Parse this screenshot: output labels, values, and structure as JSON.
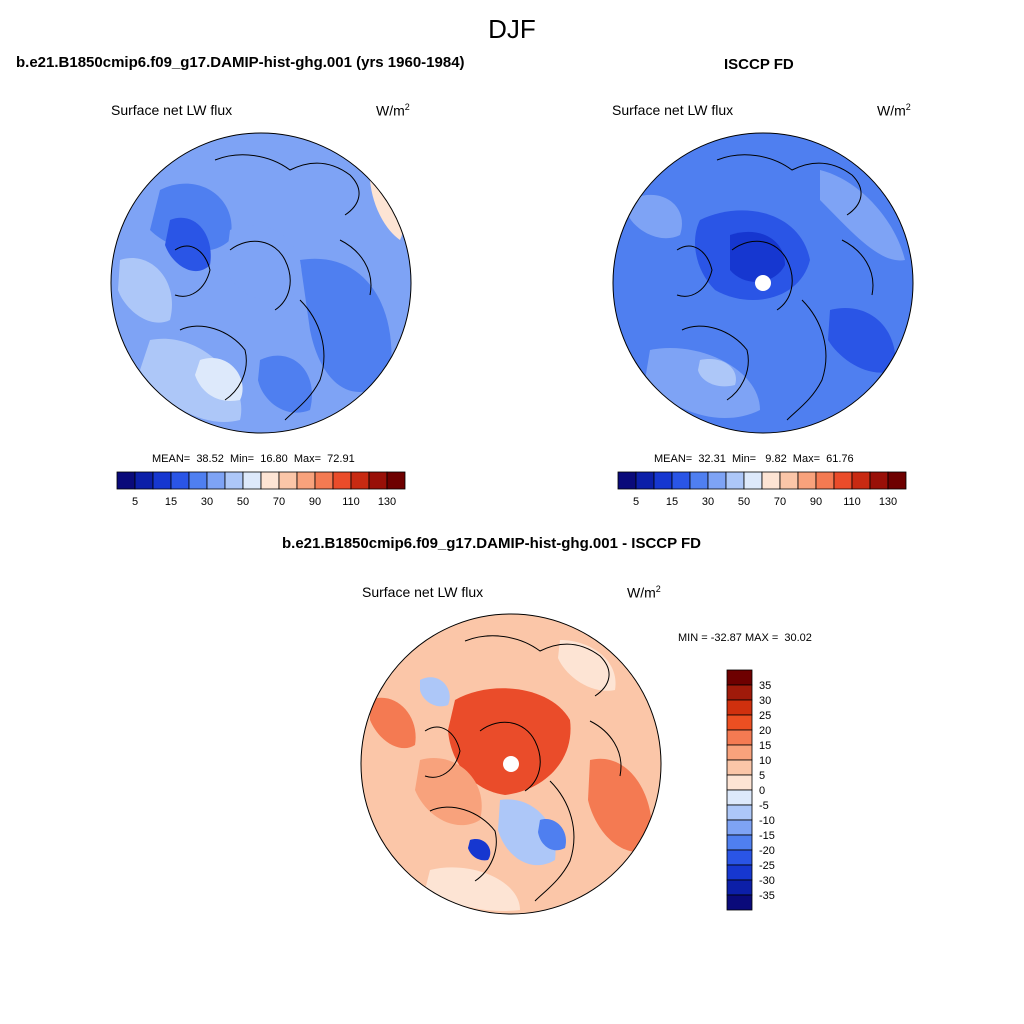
{
  "page": {
    "title": "DJF"
  },
  "panels": [
    {
      "title": "b.e21.B1850cmip6.f09_g17.DAMIP-hist-ghg.001 (yrs 1960-1984)",
      "left_label": "Surface net LW flux",
      "units_base": "W/m",
      "units_exp": "2",
      "stats": "MEAN=  38.52  Min=  16.80  Max=  72.91"
    },
    {
      "title": "ISCCP FD",
      "left_label": "Surface net LW flux",
      "units_base": "W/m",
      "units_exp": "2",
      "stats": "MEAN=  32.31  Min=   9.82  Max=  61.76"
    },
    {
      "title": "b.e21.B1850cmip6.f09_g17.DAMIP-hist-ghg.001 - ISCCP FD",
      "left_label": "Surface net LW flux",
      "units_base": "W/m",
      "units_exp": "2",
      "stats": "MIN = -32.87 MAX =  30.02"
    }
  ],
  "colorbars": {
    "absolute": {
      "colors": [
        "#0a0a7a",
        "#0c1fa8",
        "#1637d0",
        "#2a55e6",
        "#4f7ff0",
        "#7ea3f5",
        "#adc7f8",
        "#dde9fb",
        "#fde4d4",
        "#fbc6a8",
        "#f8a27c",
        "#f47a52",
        "#ea4c2a",
        "#c82a12",
        "#991008",
        "#6e0000"
      ],
      "tick_labels": [
        "5",
        "15",
        "30",
        "50",
        "70",
        "90",
        "110",
        "130"
      ]
    },
    "difference": {
      "colors": [
        "#6e0000",
        "#a01a0a",
        "#d0300e",
        "#ec4f22",
        "#f47a52",
        "#f8a27c",
        "#fbc6a8",
        "#fde4d4",
        "#dde9fb",
        "#adc7f8",
        "#7ea3f5",
        "#4f7ff0",
        "#2a55e6",
        "#1637d0",
        "#0c1fa8",
        "#0a0a7a"
      ],
      "tick_labels": [
        "35",
        "30",
        "25",
        "20",
        "15",
        "10",
        "5",
        "0",
        "-5",
        "-10",
        "-15",
        "-20",
        "-25",
        "-30",
        "-35"
      ]
    }
  },
  "chart_data": [
    {
      "type": "heatmap",
      "projection": "north polar stereographic",
      "title": "b.e21.B1850cmip6.f09_g17.DAMIP-hist-ghg.001 (yrs 1960-1984)",
      "variable": "Surface net LW flux",
      "units": "W/m2",
      "mean": 38.52,
      "min": 16.8,
      "max": 72.91,
      "color_levels": [
        5,
        10,
        15,
        20,
        25,
        30,
        40,
        50,
        60,
        70,
        80,
        90,
        100,
        110,
        120,
        130
      ]
    },
    {
      "type": "heatmap",
      "projection": "north polar stereographic",
      "title": "ISCCP FD",
      "variable": "Surface net LW flux",
      "units": "W/m2",
      "mean": 32.31,
      "min": 9.82,
      "max": 61.76,
      "color_levels": [
        5,
        10,
        15,
        20,
        25,
        30,
        40,
        50,
        60,
        70,
        80,
        90,
        100,
        110,
        120,
        130
      ]
    },
    {
      "type": "heatmap",
      "projection": "north polar stereographic",
      "title": "b.e21.B1850cmip6.f09_g17.DAMIP-hist-ghg.001 - ISCCP FD",
      "variable": "Surface net LW flux",
      "units": "W/m2",
      "min": -32.87,
      "max": 30.02,
      "color_levels": [
        -35,
        -30,
        -25,
        -20,
        -15,
        -10,
        -5,
        0,
        5,
        10,
        15,
        20,
        25,
        30,
        35
      ]
    }
  ]
}
